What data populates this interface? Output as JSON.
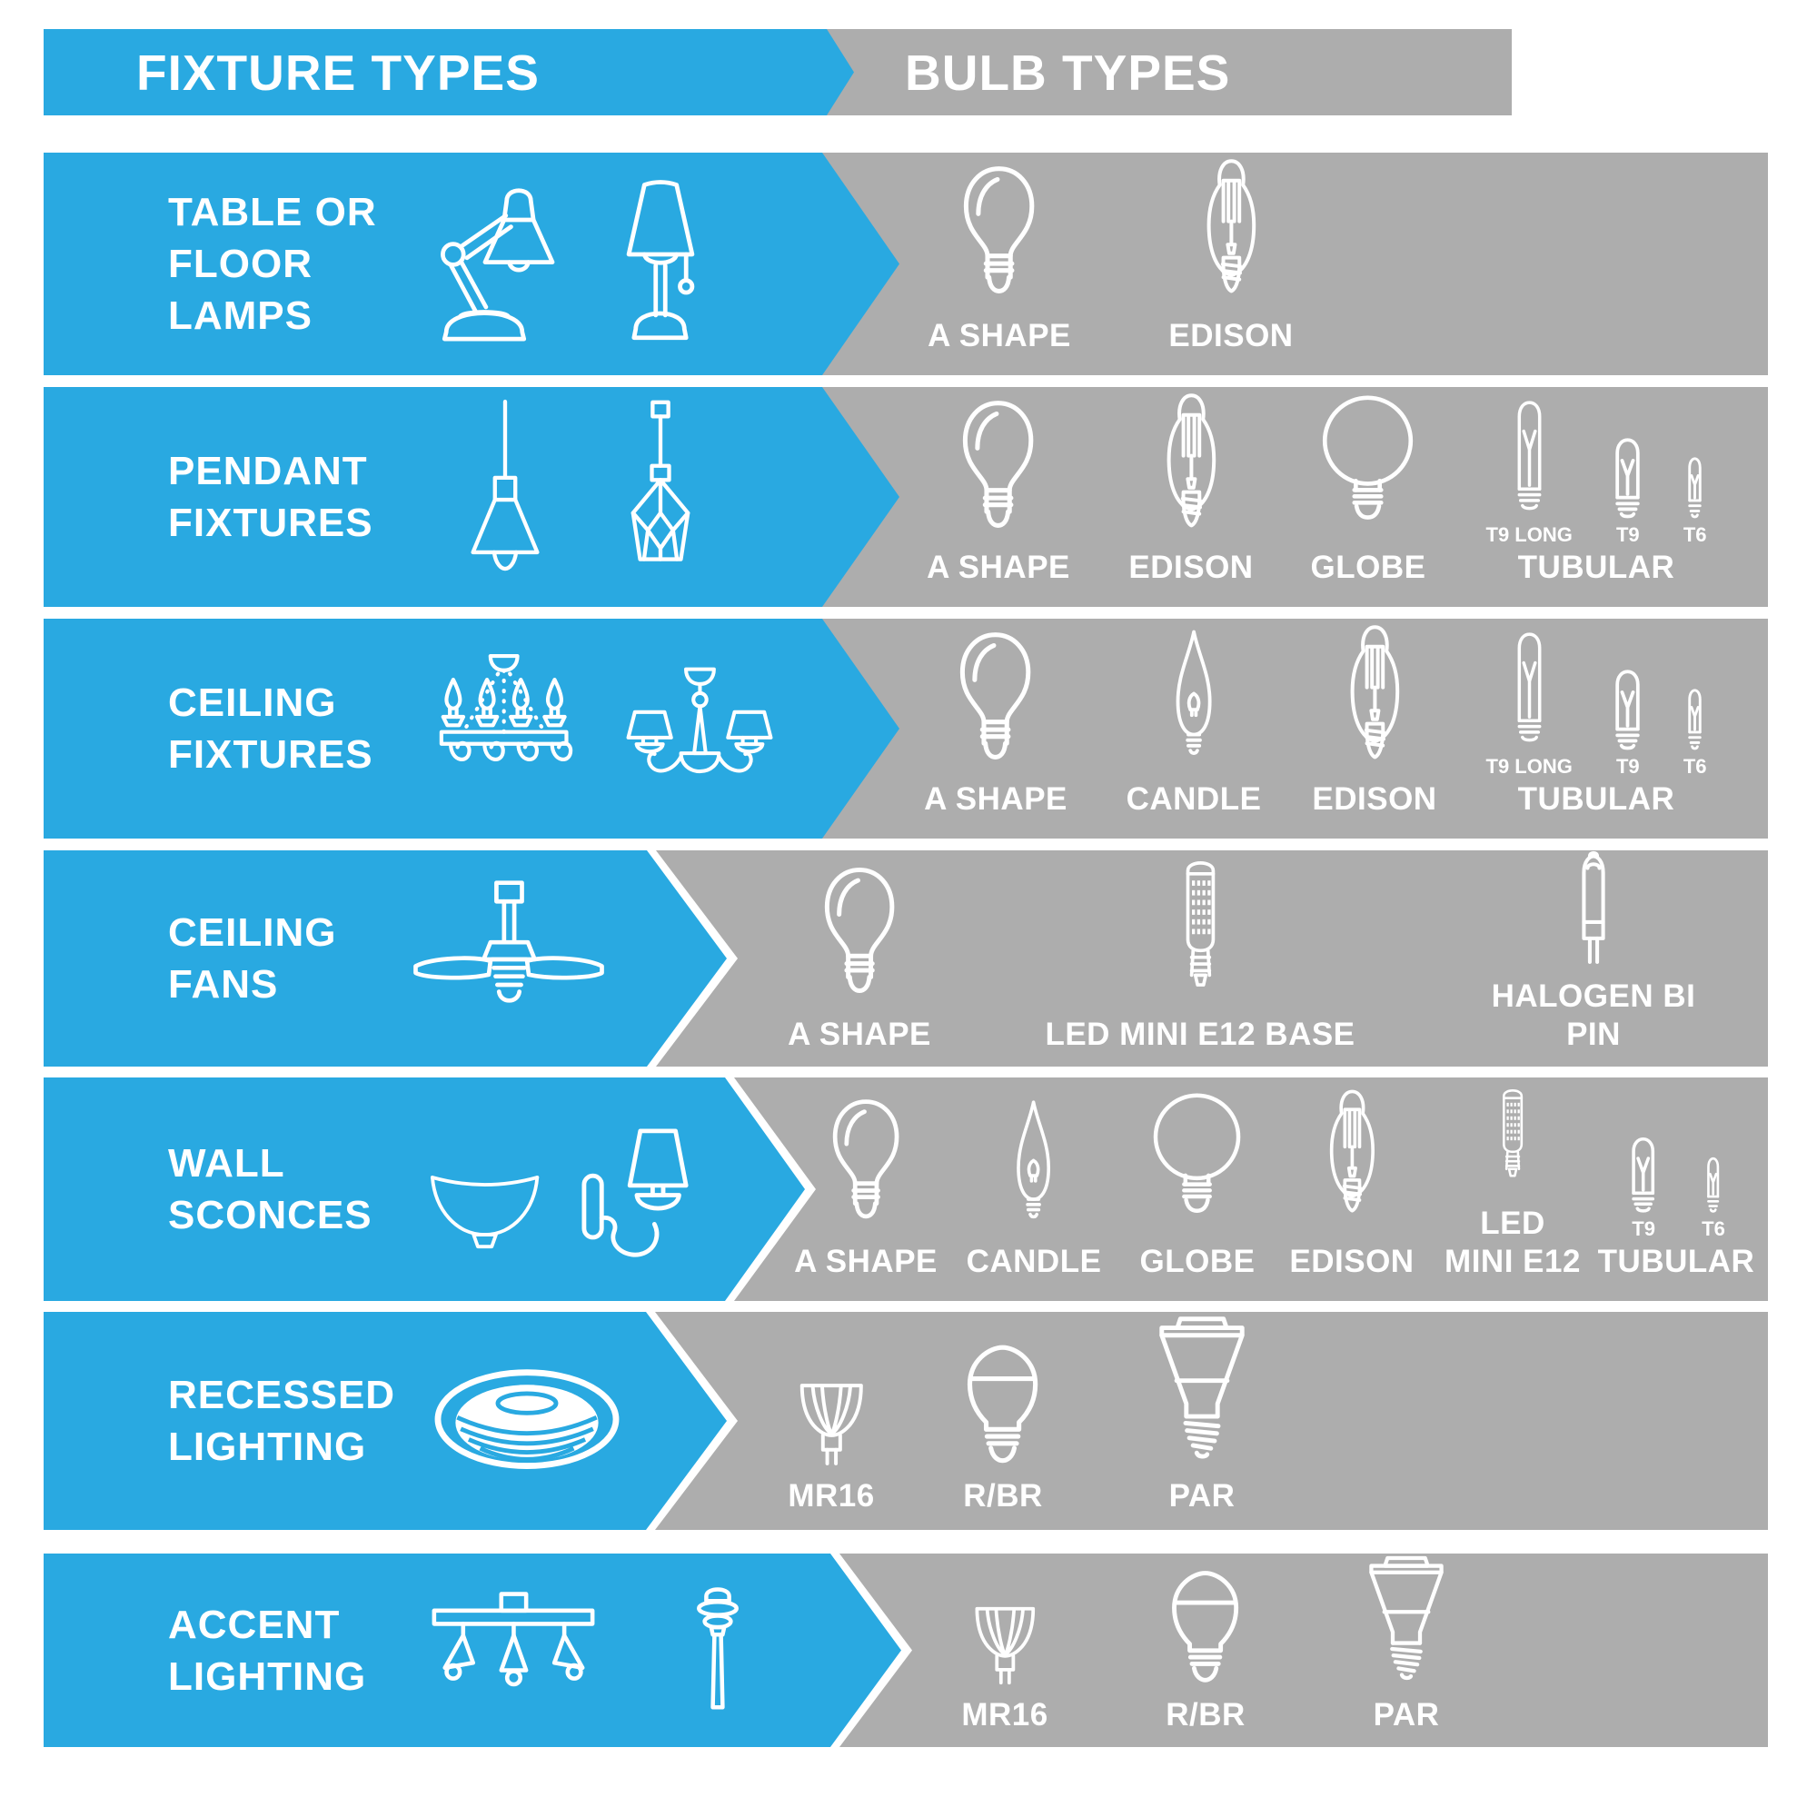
{
  "colors": {
    "accent_blue": "#29A9E1",
    "band_gray": "#ADADAD",
    "text_white": "#FFFFFF"
  },
  "header": {
    "fixture_types_label": "FIXTURE TYPES",
    "bulb_types_label": "BULB TYPES"
  },
  "rows": [
    {
      "fixture": {
        "label_lines": [
          "TABLE OR",
          "FLOOR",
          "LAMPS"
        ],
        "icons": [
          "desk-lamp-icon",
          "table-lamp-icon"
        ]
      },
      "bulbs": [
        {
          "label": "A SHAPE",
          "icon": "a-shape-bulb-icon"
        },
        {
          "label": "EDISON",
          "icon": "edison-bulb-icon"
        }
      ]
    },
    {
      "fixture": {
        "label_lines": [
          "PENDANT",
          "FIXTURES"
        ],
        "icons": [
          "cone-pendant-icon",
          "geometric-pendant-icon"
        ]
      },
      "bulbs": [
        {
          "label": "A SHAPE",
          "icon": "a-shape-bulb-icon"
        },
        {
          "label": "EDISON",
          "icon": "edison-bulb-icon"
        },
        {
          "label": "GLOBE",
          "icon": "globe-bulb-icon"
        },
        {
          "label": "TUBULAR",
          "group": [
            {
              "sublabel": "T9 LONG",
              "icon": "tubular-long-bulb-icon"
            },
            {
              "sublabel": "T9",
              "icon": "tubular-medium-bulb-icon"
            },
            {
              "sublabel": "T6",
              "icon": "tubular-small-bulb-icon"
            }
          ]
        }
      ]
    },
    {
      "fixture": {
        "label_lines": [
          "CEILING",
          "FIXTURES"
        ],
        "icons": [
          "chandelier-icon",
          "shaded-chandelier-icon"
        ]
      },
      "bulbs": [
        {
          "label": "A SHAPE",
          "icon": "a-shape-bulb-icon"
        },
        {
          "label": "CANDLE",
          "icon": "candle-bulb-icon"
        },
        {
          "label": "EDISON",
          "icon": "edison-bulb-icon"
        },
        {
          "label": "TUBULAR",
          "group": [
            {
              "sublabel": "T9 LONG",
              "icon": "tubular-long-bulb-icon"
            },
            {
              "sublabel": "T9",
              "icon": "tubular-medium-bulb-icon"
            },
            {
              "sublabel": "T6",
              "icon": "tubular-small-bulb-icon"
            }
          ]
        }
      ]
    },
    {
      "fixture": {
        "label_lines": [
          "CEILING",
          "FANS"
        ],
        "icons": [
          "ceiling-fan-icon"
        ]
      },
      "bulbs": [
        {
          "label": "A SHAPE",
          "icon": "a-shape-bulb-icon"
        },
        {
          "label": "LED MINI E12 BASE",
          "icon": "led-mini-e12-bulb-icon"
        },
        {
          "label": "HALOGEN BI PIN",
          "icon": "halogen-bipin-bulb-icon"
        }
      ]
    },
    {
      "fixture": {
        "label_lines": [
          "WALL",
          "SCONCES"
        ],
        "icons": [
          "bowl-sconce-icon",
          "arm-sconce-icon"
        ]
      },
      "bulbs": [
        {
          "label": "A SHAPE",
          "icon": "a-shape-bulb-icon"
        },
        {
          "label": "CANDLE",
          "icon": "candle-bulb-icon"
        },
        {
          "label": "GLOBE",
          "icon": "globe-bulb-icon"
        },
        {
          "label": "EDISON",
          "icon": "edison-bulb-icon"
        },
        {
          "label": "LED\nMINI E12",
          "icon": "led-mini-e12-bulb-icon"
        },
        {
          "label": "TUBULAR",
          "group": [
            {
              "sublabel": "T9",
              "icon": "tubular-medium-bulb-icon"
            },
            {
              "sublabel": "T6",
              "icon": "tubular-small-bulb-icon"
            }
          ]
        }
      ]
    },
    {
      "fixture": {
        "label_lines": [
          "RECESSED",
          "LIGHTING"
        ],
        "icons": [
          "recessed-light-icon"
        ]
      },
      "bulbs": [
        {
          "label": "MR16",
          "icon": "mr16-bulb-icon"
        },
        {
          "label": "R/BR",
          "icon": "r-br-bulb-icon"
        },
        {
          "label": "PAR",
          "icon": "par-bulb-icon"
        }
      ]
    },
    {
      "fixture": {
        "label_lines": [
          "ACCENT",
          "LIGHTING"
        ],
        "icons": [
          "track-light-icon",
          "path-light-icon"
        ]
      },
      "bulbs": [
        {
          "label": "MR16",
          "icon": "mr16-bulb-icon"
        },
        {
          "label": "R/BR",
          "icon": "r-br-bulb-icon"
        },
        {
          "label": "PAR",
          "icon": "par-bulb-icon"
        }
      ]
    }
  ]
}
